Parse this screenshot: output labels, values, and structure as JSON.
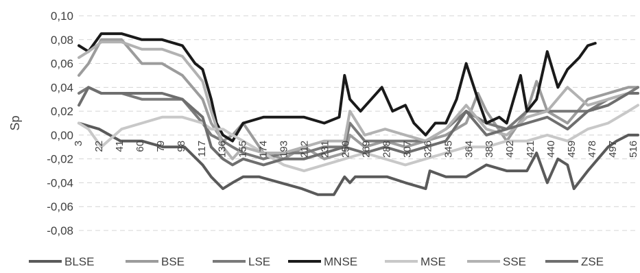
{
  "chart_data": {
    "type": "line",
    "title": "",
    "xlabel": "",
    "ylabel": "Sp",
    "ylim": [
      -0.08,
      0.1
    ],
    "xlim": [
      1,
      525
    ],
    "yticks": [
      "0,10",
      "0,08",
      "0,06",
      "0,04",
      "0,02",
      "0,00",
      "-0,02",
      "-0,04",
      "-0,06",
      "-0,08"
    ],
    "yticks_values": [
      0.1,
      0.08,
      0.06,
      0.04,
      0.02,
      0.0,
      -0.02,
      -0.04,
      -0.06,
      -0.08
    ],
    "xticks": [
      "3",
      "22",
      "41",
      "60",
      "79",
      "98",
      "117",
      "136",
      "155",
      "174",
      "193",
      "212",
      "231",
      "250",
      "269",
      "288",
      "307",
      "326",
      "345",
      "364",
      "383",
      "402",
      "421",
      "440",
      "459",
      "478",
      "497",
      "516"
    ],
    "grid": true,
    "legend_position": "bottom",
    "series": [
      {
        "name": "BLSE",
        "color": "#5a5a5a",
        "points": [
          [
            1,
            0.01
          ],
          [
            20,
            0.005
          ],
          [
            40,
            -0.005
          ],
          [
            60,
            -0.005
          ],
          [
            80,
            -0.01
          ],
          [
            100,
            -0.01
          ],
          [
            117,
            -0.025
          ],
          [
            125,
            -0.035
          ],
          [
            136,
            -0.045
          ],
          [
            145,
            -0.04
          ],
          [
            155,
            -0.035
          ],
          [
            170,
            -0.035
          ],
          [
            190,
            -0.04
          ],
          [
            210,
            -0.045
          ],
          [
            225,
            -0.05
          ],
          [
            240,
            -0.05
          ],
          [
            250,
            -0.035
          ],
          [
            255,
            -0.04
          ],
          [
            260,
            -0.035
          ],
          [
            275,
            -0.035
          ],
          [
            290,
            -0.035
          ],
          [
            307,
            -0.04
          ],
          [
            326,
            -0.045
          ],
          [
            330,
            -0.03
          ],
          [
            345,
            -0.035
          ],
          [
            364,
            -0.035
          ],
          [
            383,
            -0.025
          ],
          [
            402,
            -0.03
          ],
          [
            421,
            -0.03
          ],
          [
            430,
            -0.015
          ],
          [
            440,
            -0.04
          ],
          [
            450,
            -0.02
          ],
          [
            459,
            -0.025
          ],
          [
            465,
            -0.045
          ],
          [
            478,
            -0.03
          ],
          [
            497,
            -0.01
          ],
          [
            505,
            -0.005
          ],
          [
            516,
            0.0
          ],
          [
            525,
            0.0
          ]
        ]
      },
      {
        "name": "BSE",
        "color": "#9c9c9c",
        "points": [
          [
            1,
            0.05
          ],
          [
            10,
            0.06
          ],
          [
            22,
            0.08
          ],
          [
            41,
            0.08
          ],
          [
            60,
            0.06
          ],
          [
            79,
            0.06
          ],
          [
            98,
            0.05
          ],
          [
            117,
            0.03
          ],
          [
            125,
            0.01
          ],
          [
            136,
            -0.005
          ],
          [
            145,
            0.0
          ],
          [
            155,
            0.01
          ],
          [
            174,
            -0.015
          ],
          [
            193,
            -0.02
          ],
          [
            212,
            -0.01
          ],
          [
            231,
            -0.02
          ],
          [
            250,
            -0.015
          ],
          [
            255,
            0.0
          ],
          [
            269,
            -0.01
          ],
          [
            288,
            -0.005
          ],
          [
            307,
            -0.01
          ],
          [
            326,
            -0.005
          ],
          [
            345,
            0.0
          ],
          [
            364,
            0.01
          ],
          [
            375,
            0.035
          ],
          [
            383,
            0.02
          ],
          [
            402,
            -0.005
          ],
          [
            421,
            0.02
          ],
          [
            430,
            0.045
          ],
          [
            440,
            0.02
          ],
          [
            459,
            0.01
          ],
          [
            478,
            0.03
          ],
          [
            497,
            0.035
          ],
          [
            516,
            0.04
          ],
          [
            525,
            0.04
          ]
        ]
      },
      {
        "name": "LSE",
        "color": "#7a7a7a",
        "points": [
          [
            1,
            0.035
          ],
          [
            10,
            0.04
          ],
          [
            22,
            0.035
          ],
          [
            41,
            0.035
          ],
          [
            60,
            0.03
          ],
          [
            79,
            0.03
          ],
          [
            98,
            0.03
          ],
          [
            117,
            0.01
          ],
          [
            125,
            0.0
          ],
          [
            136,
            -0.005
          ],
          [
            145,
            -0.01
          ],
          [
            155,
            -0.015
          ],
          [
            174,
            -0.02
          ],
          [
            193,
            -0.015
          ],
          [
            212,
            -0.015
          ],
          [
            231,
            -0.01
          ],
          [
            250,
            -0.01
          ],
          [
            255,
            0.01
          ],
          [
            269,
            -0.005
          ],
          [
            288,
            -0.005
          ],
          [
            307,
            -0.005
          ],
          [
            326,
            -0.005
          ],
          [
            345,
            0.005
          ],
          [
            364,
            0.02
          ],
          [
            383,
            0.01
          ],
          [
            402,
            0.005
          ],
          [
            421,
            0.02
          ],
          [
            440,
            0.02
          ],
          [
            459,
            0.02
          ],
          [
            478,
            0.02
          ],
          [
            497,
            0.03
          ],
          [
            516,
            0.035
          ],
          [
            525,
            0.04
          ]
        ]
      },
      {
        "name": "MNSE",
        "color": "#1a1a1a",
        "points": [
          [
            1,
            0.075
          ],
          [
            10,
            0.07
          ],
          [
            22,
            0.085
          ],
          [
            41,
            0.085
          ],
          [
            60,
            0.08
          ],
          [
            79,
            0.08
          ],
          [
            98,
            0.075
          ],
          [
            110,
            0.06
          ],
          [
            117,
            0.055
          ],
          [
            125,
            0.03
          ],
          [
            130,
            0.01
          ],
          [
            136,
            0.0
          ],
          [
            145,
            -0.005
          ],
          [
            155,
            0.01
          ],
          [
            174,
            0.015
          ],
          [
            193,
            0.015
          ],
          [
            212,
            0.015
          ],
          [
            231,
            0.01
          ],
          [
            245,
            0.015
          ],
          [
            250,
            0.05
          ],
          [
            255,
            0.03
          ],
          [
            265,
            0.02
          ],
          [
            275,
            0.03
          ],
          [
            285,
            0.04
          ],
          [
            295,
            0.02
          ],
          [
            307,
            0.025
          ],
          [
            315,
            0.01
          ],
          [
            326,
            0.0
          ],
          [
            335,
            0.01
          ],
          [
            345,
            0.01
          ],
          [
            355,
            0.03
          ],
          [
            364,
            0.06
          ],
          [
            375,
            0.03
          ],
          [
            383,
            0.01
          ],
          [
            395,
            0.015
          ],
          [
            402,
            0.01
          ],
          [
            415,
            0.05
          ],
          [
            421,
            0.02
          ],
          [
            430,
            0.03
          ],
          [
            440,
            0.07
          ],
          [
            450,
            0.04
          ],
          [
            459,
            0.055
          ],
          [
            470,
            0.065
          ],
          [
            478,
            0.075
          ],
          [
            485,
            0.077
          ]
        ]
      },
      {
        "name": "MSE",
        "color": "#c8c8c8",
        "points": [
          [
            1,
            0.01
          ],
          [
            10,
            0.005
          ],
          [
            22,
            -0.01
          ],
          [
            41,
            0.005
          ],
          [
            60,
            0.01
          ],
          [
            79,
            0.015
          ],
          [
            98,
            0.015
          ],
          [
            117,
            0.01
          ],
          [
            125,
            0.005
          ],
          [
            136,
            0.005
          ],
          [
            145,
            0.0
          ],
          [
            155,
            -0.005
          ],
          [
            174,
            -0.015
          ],
          [
            193,
            -0.025
          ],
          [
            212,
            -0.03
          ],
          [
            231,
            -0.025
          ],
          [
            250,
            -0.02
          ],
          [
            269,
            -0.015
          ],
          [
            288,
            -0.02
          ],
          [
            307,
            -0.025
          ],
          [
            326,
            -0.02
          ],
          [
            345,
            -0.015
          ],
          [
            364,
            -0.01
          ],
          [
            383,
            -0.01
          ],
          [
            402,
            -0.005
          ],
          [
            421,
            -0.005
          ],
          [
            440,
            0.0
          ],
          [
            459,
            -0.005
          ],
          [
            478,
            0.005
          ],
          [
            497,
            0.01
          ],
          [
            516,
            0.02
          ],
          [
            525,
            0.025
          ]
        ]
      },
      {
        "name": "SSE",
        "color": "#b2b2b2",
        "points": [
          [
            1,
            0.065
          ],
          [
            10,
            0.07
          ],
          [
            22,
            0.078
          ],
          [
            41,
            0.078
          ],
          [
            60,
            0.072
          ],
          [
            79,
            0.072
          ],
          [
            98,
            0.066
          ],
          [
            117,
            0.045
          ],
          [
            125,
            0.02
          ],
          [
            136,
            -0.01
          ],
          [
            145,
            -0.02
          ],
          [
            155,
            -0.01
          ],
          [
            174,
            -0.015
          ],
          [
            193,
            -0.015
          ],
          [
            212,
            -0.01
          ],
          [
            231,
            -0.005
          ],
          [
            250,
            -0.005
          ],
          [
            255,
            0.02
          ],
          [
            269,
            0.0
          ],
          [
            288,
            0.005
          ],
          [
            307,
            0.0
          ],
          [
            326,
            -0.005
          ],
          [
            345,
            0.005
          ],
          [
            364,
            0.025
          ],
          [
            383,
            0.005
          ],
          [
            402,
            0.0
          ],
          [
            421,
            0.015
          ],
          [
            440,
            0.02
          ],
          [
            459,
            0.04
          ],
          [
            478,
            0.025
          ],
          [
            497,
            0.03
          ],
          [
            516,
            0.035
          ],
          [
            525,
            0.035
          ]
        ]
      },
      {
        "name": "ZSE",
        "color": "#6e6e6e",
        "points": [
          [
            1,
            0.025
          ],
          [
            10,
            0.04
          ],
          [
            22,
            0.035
          ],
          [
            41,
            0.035
          ],
          [
            60,
            0.035
          ],
          [
            79,
            0.035
          ],
          [
            98,
            0.03
          ],
          [
            117,
            0.015
          ],
          [
            125,
            -0.01
          ],
          [
            136,
            -0.02
          ],
          [
            145,
            -0.025
          ],
          [
            155,
            -0.02
          ],
          [
            174,
            -0.025
          ],
          [
            193,
            -0.02
          ],
          [
            212,
            -0.02
          ],
          [
            231,
            -0.015
          ],
          [
            250,
            -0.01
          ],
          [
            269,
            -0.015
          ],
          [
            288,
            -0.01
          ],
          [
            307,
            -0.015
          ],
          [
            326,
            -0.01
          ],
          [
            345,
            -0.005
          ],
          [
            364,
            0.02
          ],
          [
            383,
            0.0
          ],
          [
            402,
            0.005
          ],
          [
            421,
            0.01
          ],
          [
            440,
            0.015
          ],
          [
            459,
            0.005
          ],
          [
            478,
            0.02
          ],
          [
            497,
            0.025
          ],
          [
            516,
            0.035
          ],
          [
            525,
            0.035
          ]
        ]
      }
    ]
  }
}
